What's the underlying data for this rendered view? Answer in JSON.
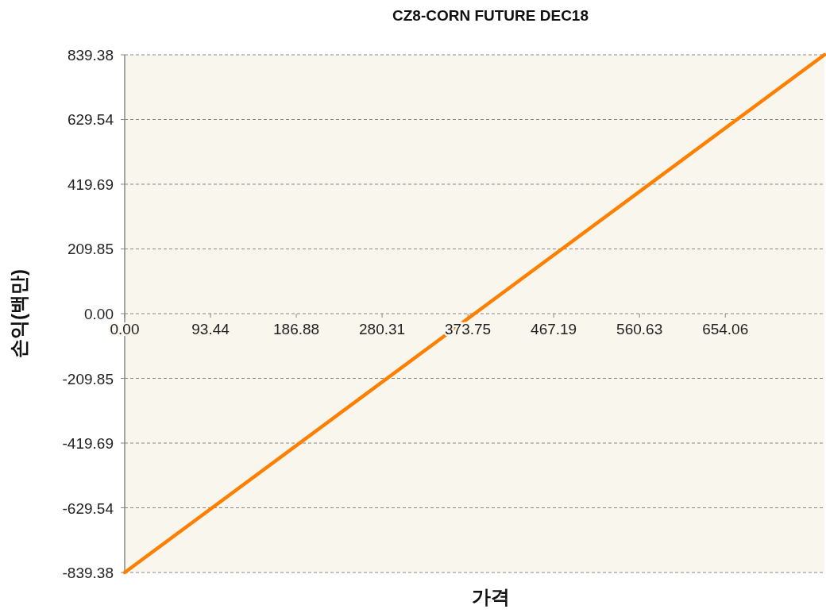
{
  "chart_data": {
    "type": "line",
    "title": "CZ8-CORN FUTURE DEC18",
    "xlabel": "가격",
    "ylabel": "손익(백만)",
    "x": [
      0,
      762
    ],
    "series": [
      {
        "color": "#ff8000",
        "values": [
          -839.38,
          839.38
        ]
      }
    ],
    "xlim": [
      0,
      762
    ],
    "xticks": [
      {
        "value": 0,
        "label": "0.00"
      },
      93.44,
      186.88,
      280.31,
      373.75,
      467.19,
      560.63,
      654.06
    ],
    "ylim": [
      -839.38,
      839.38
    ],
    "yticks": [
      -839.38,
      -629.54,
      -419.69,
      -209.85,
      {
        "value": 0,
        "label": "0.00"
      },
      209.85,
      419.69,
      629.54,
      839.38
    ],
    "grid": "y"
  }
}
